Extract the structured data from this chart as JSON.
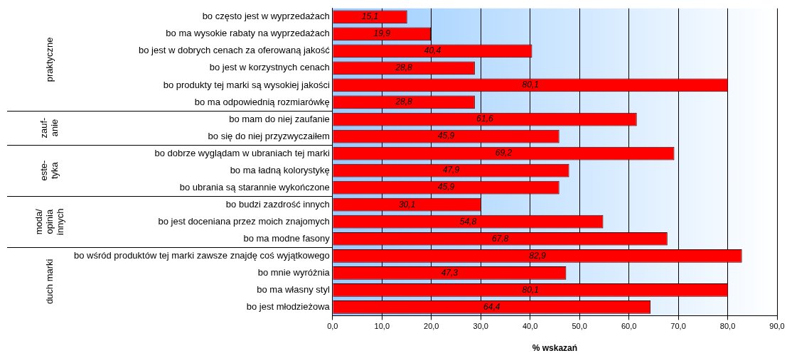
{
  "chart_data": {
    "type": "bar",
    "orientation": "horizontal",
    "xlabel": "% wskazań",
    "categories": [
      "bo często jest w wyprzedażach",
      "bo ma wysokie rabaty na wyprzedażach",
      "bo jest w dobrych cenach za oferowaną jakość",
      "bo jest w korzystnych cenach",
      "bo produkty tej marki są wysokiej jakości",
      "bo ma odpowiednią rozmiarówkę",
      "bo mam do niej zaufanie",
      "bo się do niej przyzwyczaiłem",
      "bo dobrze wyglądam w ubraniach tej marki",
      "bo ma ładną kolorystykę",
      "bo ubrania są starannie wykończone",
      "bo budzi zazdrość innych",
      "bo jest doceniana przez moich znajomych",
      "bo ma modne fasony",
      "bo wśród produktów tej marki zawsze znajdę coś wyjątkowego",
      "bo mnie wyróżnia",
      "bo ma własny styl",
      "bo jest młodzieżowa"
    ],
    "values": [
      15.1,
      19.9,
      40.4,
      28.8,
      80.1,
      28.8,
      61.6,
      45.9,
      69.2,
      47.9,
      45.9,
      30.1,
      54.8,
      67.8,
      82.9,
      47.3,
      80.1,
      64.4
    ],
    "value_labels": [
      "15,1",
      "19,9",
      "40,4",
      "28,8",
      "80,1",
      "28,8",
      "61,6",
      "45,9",
      "69,2",
      "47,9",
      "45,9",
      "30,1",
      "54,8",
      "67,8",
      "82,9",
      "47,3",
      "80,1",
      "64,4"
    ],
    "color": "#ff0000",
    "xlim": [
      0,
      90
    ],
    "xticks": [
      {
        "value": 0,
        "label": "0,0"
      },
      {
        "value": 10,
        "label": "10,0"
      },
      {
        "value": 20,
        "label": "20,0"
      },
      {
        "value": 30,
        "label": "30,0"
      },
      {
        "value": 40,
        "label": "40,0"
      },
      {
        "value": 50,
        "label": "50,0"
      },
      {
        "value": 60,
        "label": "60,0"
      },
      {
        "value": 70,
        "label": "70,0"
      },
      {
        "value": 80,
        "label": "80,0"
      },
      {
        "value": 90,
        "label": "90,0"
      }
    ],
    "grid": "x",
    "legend": false,
    "annotations": [
      "praktyczne",
      "zauf-\nanie",
      "este-\ntyka",
      "moda/\nopinia\ninnych",
      "duch marki"
    ]
  }
}
